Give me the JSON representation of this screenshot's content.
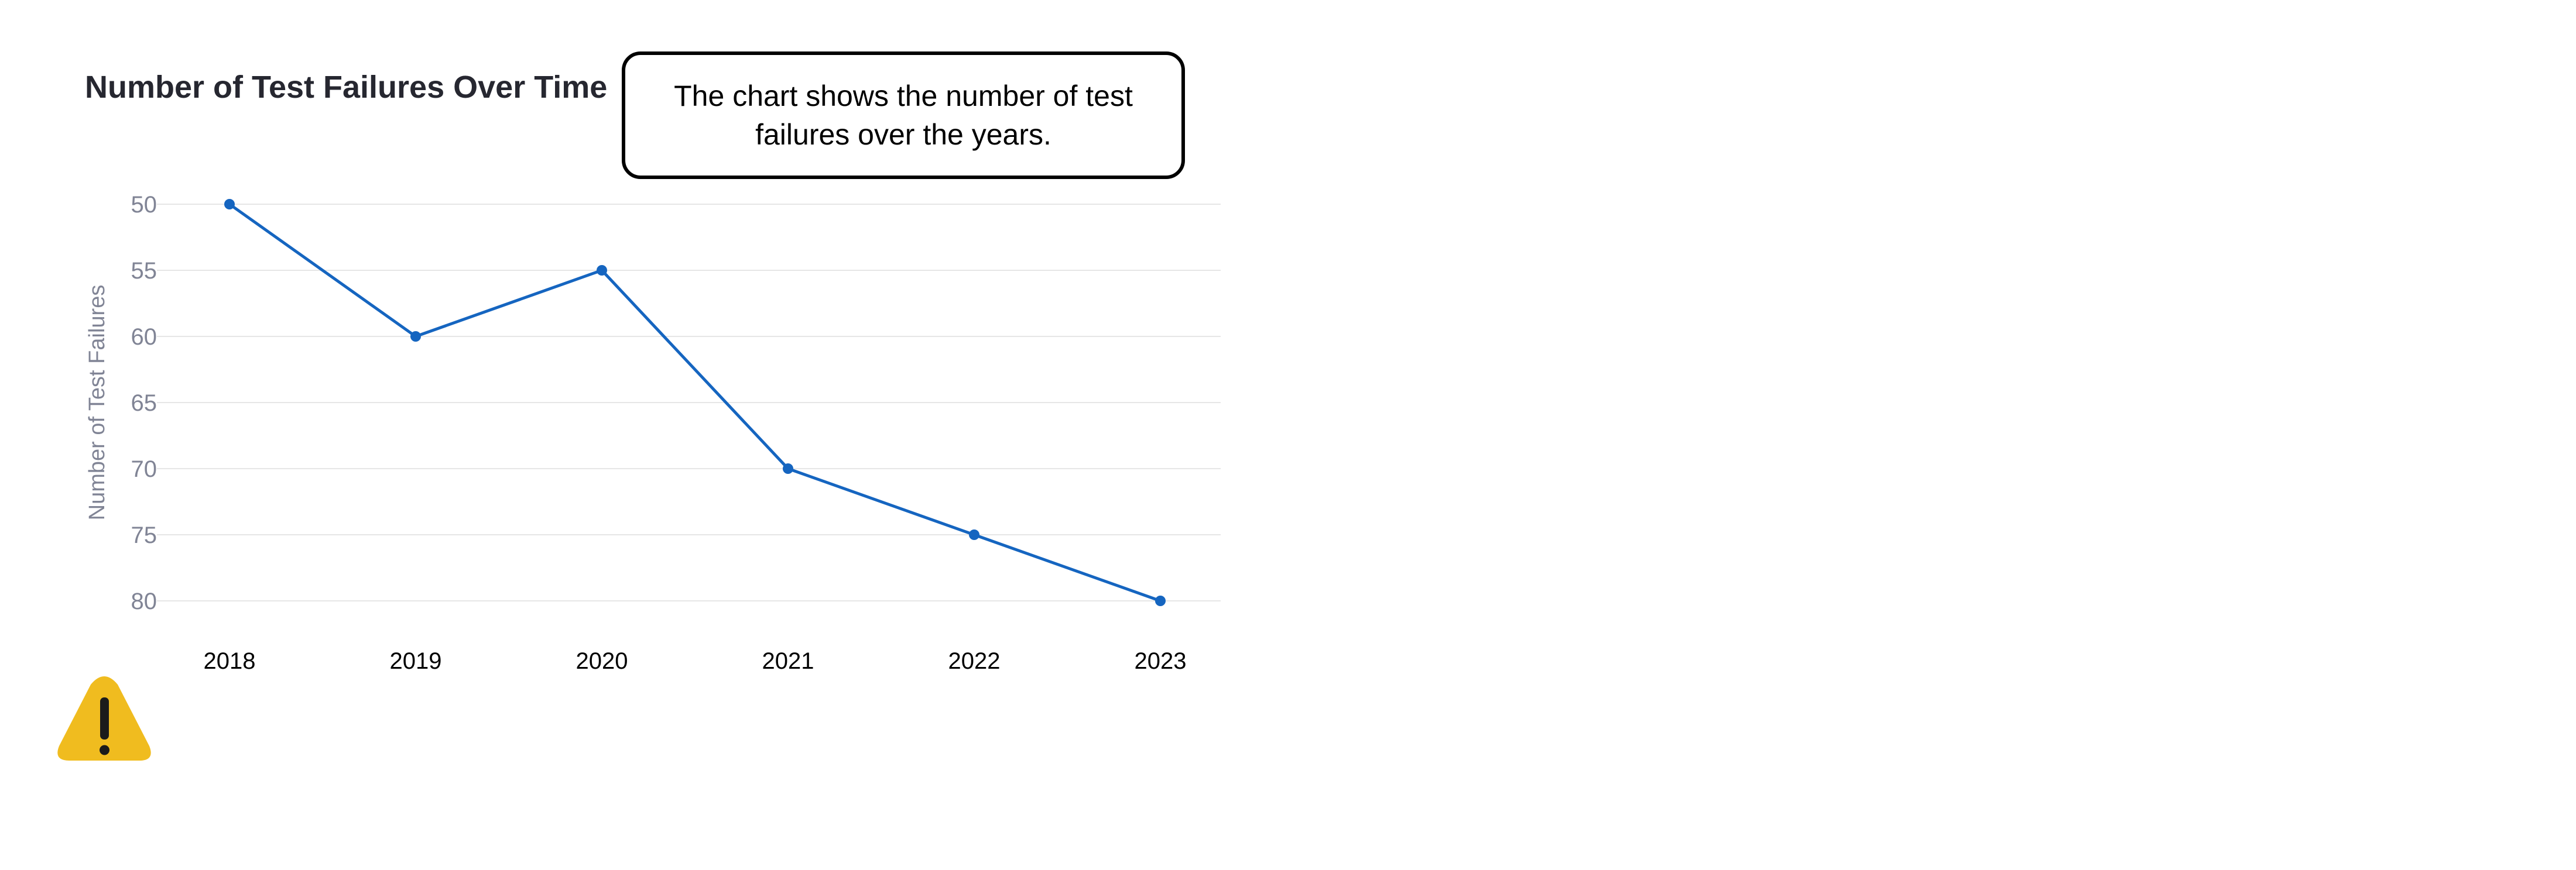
{
  "chart_data": {
    "type": "line",
    "title": "Number of Test Failures Over Time",
    "xlabel": "",
    "ylabel": "Number of Test Failures",
    "categories": [
      "2018",
      "2019",
      "2020",
      "2021",
      "2022",
      "2023"
    ],
    "series": [
      {
        "values": [
          50,
          60,
          55,
          70,
          75,
          80
        ]
      }
    ],
    "ylim": [
      50,
      80
    ],
    "y_ticks": [
      50,
      55,
      60,
      65,
      70,
      75,
      80
    ],
    "y_reversed": true,
    "grid": true,
    "line_color": "#1565c0",
    "grid_color": "#e6e6e6",
    "annotation": "The chart shows the number of test failures over the years.",
    "warning_icon": "warning-triangle-icon",
    "warning_color": "#f0bc1f"
  }
}
